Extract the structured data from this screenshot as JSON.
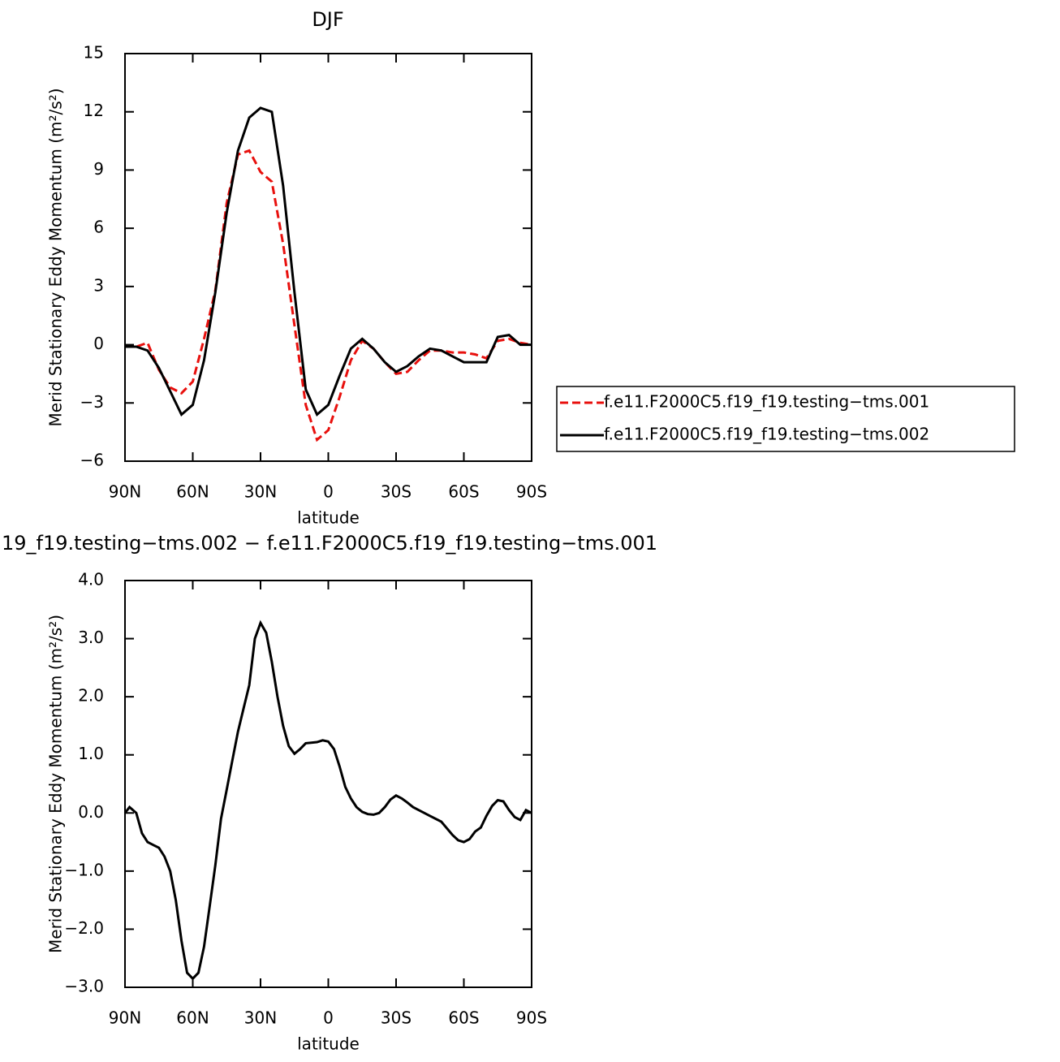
{
  "chart_data": [
    {
      "type": "line",
      "title": "DJF",
      "xlabel": "latitude",
      "ylabel": "Merid Stationary Eddy Momentum (m²/s²)",
      "x": [
        90,
        85,
        80,
        75,
        70,
        65,
        60,
        55,
        50,
        45,
        40,
        35,
        30,
        25,
        20,
        15,
        10,
        5,
        0,
        -5,
        -10,
        -15,
        -20,
        -25,
        -30,
        -35,
        -40,
        -45,
        -50,
        -55,
        -60,
        -65,
        -70,
        -75,
        -80,
        -85,
        -90
      ],
      "xlim": [
        90,
        -90
      ],
      "xticks": [
        {
          "value": 90,
          "label": "90N"
        },
        {
          "value": 60,
          "label": "60N"
        },
        {
          "value": 30,
          "label": "30N"
        },
        0,
        {
          "value": -30,
          "label": "30S"
        },
        {
          "value": -60,
          "label": "60S"
        },
        {
          "value": -90,
          "label": "90S"
        }
      ],
      "ylim": [
        -6,
        15
      ],
      "yticks": [
        {
          "value": -6,
          "label": "−6"
        },
        {
          "value": -3,
          "label": "−3"
        },
        0,
        3,
        6,
        9,
        12,
        15
      ],
      "legend": "right",
      "series": [
        {
          "name": "f.e11.F2000C5.f19_f19.testing−tms.001",
          "color": "#e8100d",
          "line_style": "dashed",
          "values": [
            -0.1,
            -0.1,
            0.1,
            -1.3,
            -2.2,
            -2.5,
            -1.9,
            0.3,
            2.8,
            7.3,
            9.8,
            10.0,
            8.9,
            8.4,
            5.2,
            1.0,
            -3.1,
            -4.9,
            -4.4,
            -2.7,
            -0.8,
            0.2,
            -0.2,
            -0.9,
            -1.5,
            -1.4,
            -0.8,
            -0.3,
            -0.3,
            -0.4,
            -0.4,
            -0.5,
            -0.7,
            0.2,
            0.3,
            0.1,
            0.0
          ]
        },
        {
          "name": "f.e11.F2000C5.f19_f19.testing−tms.002",
          "color": "#000000",
          "line_style": "solid",
          "values": [
            -0.1,
            -0.1,
            -0.3,
            -1.2,
            -2.4,
            -3.6,
            -3.1,
            -0.8,
            2.7,
            6.8,
            10.0,
            11.7,
            12.2,
            12.0,
            8.2,
            2.7,
            -2.3,
            -3.6,
            -3.1,
            -1.6,
            -0.2,
            0.3,
            -0.2,
            -0.9,
            -1.4,
            -1.1,
            -0.6,
            -0.2,
            -0.3,
            -0.6,
            -0.9,
            -0.9,
            -0.9,
            0.4,
            0.5,
            0.0,
            0.0
          ]
        }
      ]
    },
    {
      "type": "line",
      "title": "19_f19.testing−tms.002 − f.e11.F2000C5.f19_f19.testing−tms.001",
      "xlabel": "latitude",
      "ylabel": "Merid Stationary Eddy Momentum (m²/s²)",
      "x": [
        90,
        88,
        85,
        82.5,
        80,
        77.5,
        75,
        72.5,
        70,
        67.5,
        65,
        62.5,
        60,
        57.5,
        55,
        52.5,
        50,
        47.5,
        45,
        42.5,
        40,
        37.5,
        35,
        32.5,
        30,
        27.5,
        25,
        22.5,
        20,
        17.5,
        15,
        12.5,
        10,
        5,
        2.5,
        0,
        -2.5,
        -5,
        -7.5,
        -10,
        -12.5,
        -15,
        -17.5,
        -20,
        -22.5,
        -25,
        -27.5,
        -30,
        -32.5,
        -35,
        -37.5,
        -40,
        -45,
        -50,
        -55,
        -57.5,
        -60,
        -62.5,
        -65,
        -67.5,
        -70,
        -72.5,
        -75,
        -77.5,
        -80,
        -82.5,
        -85,
        -87.5,
        -90
      ],
      "xlim": [
        90,
        -90
      ],
      "xticks": [
        {
          "value": 90,
          "label": "90N"
        },
        {
          "value": 60,
          "label": "60N"
        },
        {
          "value": 30,
          "label": "30N"
        },
        0,
        {
          "value": -30,
          "label": "30S"
        },
        {
          "value": -60,
          "label": "60S"
        },
        {
          "value": -90,
          "label": "90S"
        }
      ],
      "ylim": [
        -3,
        4
      ],
      "yticks": [
        {
          "value": -3,
          "label": "−3.0"
        },
        {
          "value": -2,
          "label": "−2.0"
        },
        {
          "value": -1,
          "label": "−1.0"
        },
        {
          "value": 0,
          "label": "0.0"
        },
        {
          "value": 1,
          "label": "1.0"
        },
        {
          "value": 2,
          "label": "2.0"
        },
        {
          "value": 3,
          "label": "3.0"
        },
        {
          "value": 4,
          "label": "4.0"
        }
      ],
      "color": "#000000",
      "values": [
        0.0,
        0.1,
        0.0,
        -0.35,
        -0.5,
        -0.55,
        -0.6,
        -0.75,
        -1.0,
        -1.5,
        -2.2,
        -2.75,
        -2.85,
        -2.75,
        -2.3,
        -1.6,
        -0.9,
        -0.1,
        0.4,
        0.9,
        1.4,
        1.8,
        2.2,
        3.0,
        3.27,
        3.1,
        2.6,
        2.0,
        1.5,
        1.15,
        1.02,
        1.1,
        1.2,
        1.22,
        1.25,
        1.23,
        1.1,
        0.8,
        0.45,
        0.25,
        0.1,
        0.02,
        -0.02,
        -0.03,
        0.0,
        0.1,
        0.23,
        0.3,
        0.25,
        0.18,
        0.1,
        0.05,
        -0.05,
        -0.15,
        -0.38,
        -0.47,
        -0.5,
        -0.45,
        -0.32,
        -0.25,
        -0.05,
        0.12,
        0.22,
        0.2,
        0.05,
        -0.07,
        -0.12,
        0.05,
        0.0
      ]
    }
  ]
}
